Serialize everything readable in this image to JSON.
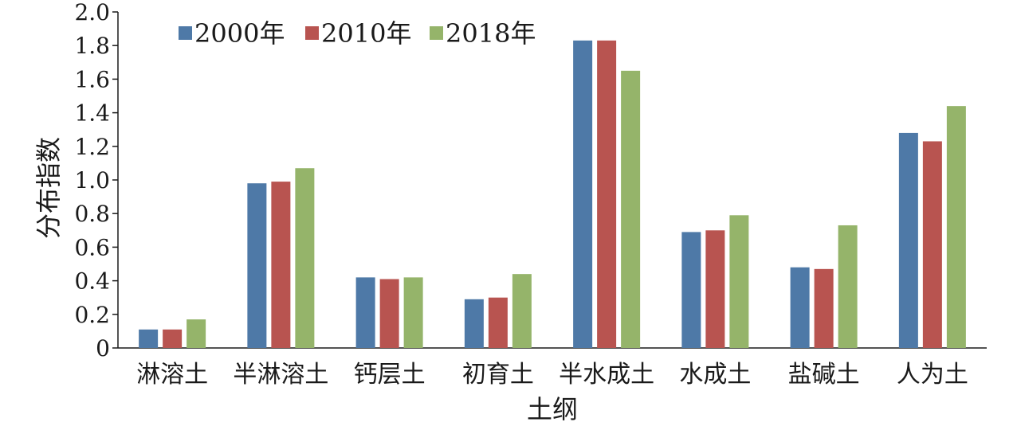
{
  "chart_data": {
    "type": "bar",
    "title": "",
    "xlabel": "土纲",
    "ylabel": "分布指数",
    "categories": [
      "淋溶土",
      "半淋溶土",
      "钙层土",
      "初育土",
      "半水成土",
      "水成土",
      "盐碱土",
      "人为土"
    ],
    "series": [
      {
        "name": "2000年",
        "color": "#4e79a7",
        "values": [
          0.11,
          0.98,
          0.42,
          0.29,
          1.83,
          0.69,
          0.48,
          1.28
        ]
      },
      {
        "name": "2010年",
        "color": "#b85450",
        "values": [
          0.11,
          0.99,
          0.41,
          0.3,
          1.83,
          0.7,
          0.47,
          1.23
        ]
      },
      {
        "name": "2018年",
        "color": "#95b46a",
        "values": [
          0.17,
          1.07,
          0.42,
          0.44,
          1.65,
          0.79,
          0.73,
          1.44
        ]
      }
    ],
    "ylim": [
      0,
      2.0
    ],
    "yticks": [
      "0",
      "0.2",
      "0.4",
      "0.6",
      "0.8",
      "1.0",
      "1.2",
      "1.4",
      "1.6",
      "1.8",
      "2.0"
    ],
    "legend_position": "top-left",
    "grid": false
  }
}
